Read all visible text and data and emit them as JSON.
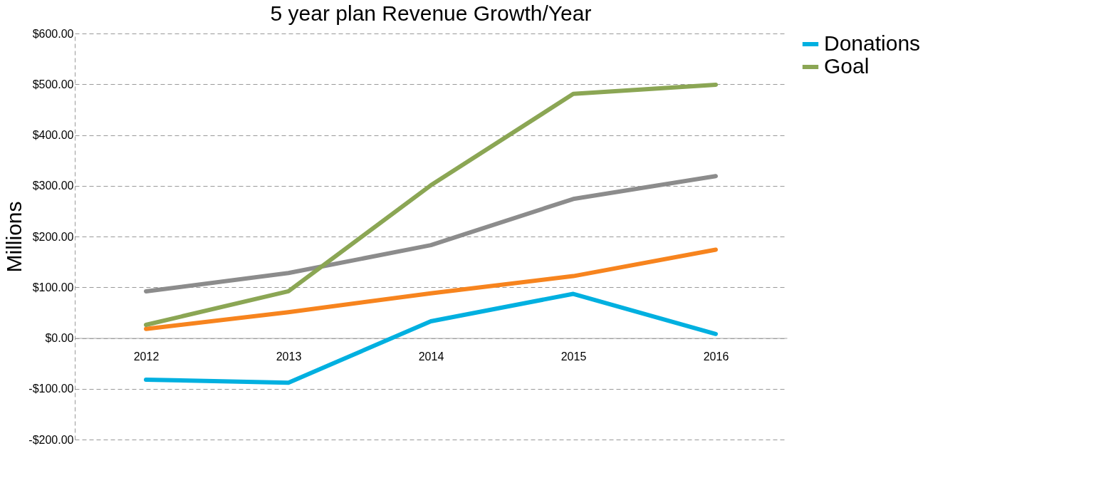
{
  "chart_data": {
    "type": "line",
    "title": "5 year plan Revenue Growth/Year",
    "ylabel": "Millions",
    "categories": [
      "2012",
      "2013",
      "2014",
      "2015",
      "2016"
    ],
    "series": [
      {
        "color": "#8c8c8c",
        "values": [
          92,
          128,
          183,
          274,
          319
        ]
      },
      {
        "color": "#f7841e",
        "values": [
          18,
          51,
          88,
          122,
          174
        ]
      },
      {
        "name": "Donations",
        "color": "#00b0e0",
        "values": [
          -82,
          -88,
          33,
          87,
          8
        ]
      },
      {
        "name": "Goal",
        "color": "#8ba654",
        "values": [
          26,
          92,
          301,
          481,
          499
        ]
      }
    ],
    "ylim": [
      -200,
      600
    ],
    "yticks": [
      {
        "value": -200,
        "label": "-$200.00"
      },
      {
        "value": -100,
        "label": "-$100.00"
      },
      {
        "value": 0,
        "label": "$0.00"
      },
      {
        "value": 100,
        "label": "$100.00"
      },
      {
        "value": 200,
        "label": "$200.00"
      },
      {
        "value": 300,
        "label": "$300.00"
      },
      {
        "value": 400,
        "label": "$400.00"
      },
      {
        "value": 500,
        "label": "$500.00"
      },
      {
        "value": 600,
        "label": "$600.00"
      }
    ],
    "grid": "y",
    "legend": "right",
    "marker": "none",
    "line_style": "solid"
  }
}
